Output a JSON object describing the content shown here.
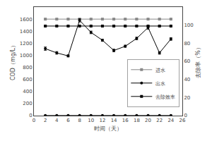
{
  "chart_data": {
    "type": "line",
    "x": [
      2,
      4,
      6,
      8,
      10,
      12,
      14,
      16,
      18,
      20,
      22,
      24
    ],
    "xlabel": "时间（天）",
    "ylabel": "COD（mg/L）",
    "y2label": "去除率（%）",
    "xlim": [
      0,
      26
    ],
    "xticks": [
      0,
      2,
      4,
      6,
      8,
      10,
      12,
      14,
      16,
      18,
      20,
      22,
      24,
      26
    ],
    "ylim": [
      0,
      1800
    ],
    "yticks": [
      0,
      200,
      400,
      600,
      800,
      1000,
      1200,
      1400,
      1600
    ],
    "y2lim": [
      0,
      120
    ],
    "y2ticks": [
      0,
      20,
      40,
      60,
      80,
      100
    ],
    "grid": false,
    "legend": "right",
    "series": [
      {
        "name": "进水",
        "color": "#888888",
        "marker": "square",
        "line_style": "solid",
        "values": [
          1600,
          1600,
          1600,
          1600,
          1600,
          1600,
          1600,
          1600,
          1600,
          1600,
          1600,
          1600
        ],
        "errors": [
          8,
          8,
          8,
          8,
          8,
          8,
          8,
          8,
          8,
          8,
          8,
          8
        ]
      },
      {
        "name": "出水",
        "color": "#000000",
        "marker": "circle",
        "line_style": "solid",
        "values": [
          1110,
          1040,
          990,
          1580,
          1380,
          1250,
          1080,
          1150,
          1280,
          1460,
          1040,
          1270
        ],
        "errors": [
          28,
          22,
          18,
          28,
          22,
          18,
          22,
          18,
          22,
          28,
          22,
          22
        ]
      },
      {
        "color": "#000000",
        "marker": "circle",
        "line_style": "solid",
        "values": [
          2,
          2,
          2,
          2,
          2,
          2,
          2,
          2,
          2,
          2,
          2,
          2
        ],
        "errors": [
          0.5,
          0.5,
          0.5,
          0.5,
          0.5,
          0.5,
          0.5,
          0.5,
          0.5,
          0.5,
          0.5,
          0.5
        ]
      },
      {
        "name": "去除效率",
        "color": "#000000",
        "marker": "square",
        "line_style": "solid",
        "axis": "y2",
        "values": [
          99,
          99,
          99,
          99,
          99,
          99,
          99,
          99,
          99,
          99,
          99,
          99
        ],
        "errors": [
          0.5,
          0.5,
          0.5,
          0.5,
          0.5,
          0.5,
          0.5,
          0.5,
          0.5,
          0.5,
          0.5,
          0.5
        ]
      }
    ]
  }
}
